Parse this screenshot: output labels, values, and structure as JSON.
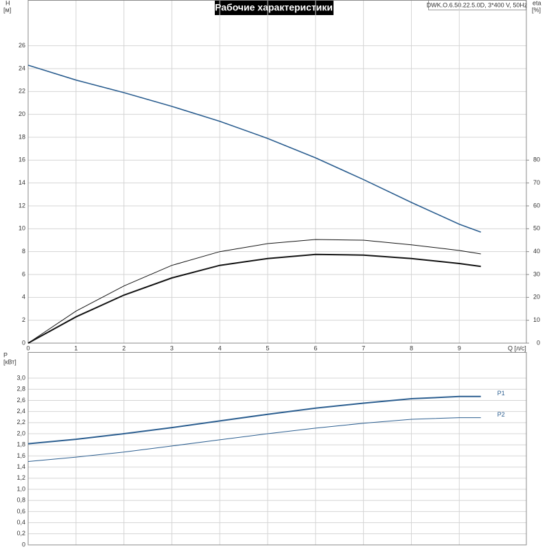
{
  "chart_data": [
    {
      "type": "line",
      "title": "Рабочие характеристики",
      "annotation": "DWK.O.6.50.22.5.0D, 3*400 V, 50Hz",
      "ylabel": "H",
      "yunit": "[м]",
      "y2label": "eta",
      "y2unit": "[%]",
      "xlabel": "Q [л/с]",
      "x": [
        0,
        1,
        2,
        3,
        4,
        5,
        6,
        7,
        8,
        9,
        9.45
      ],
      "xlim": [
        0,
        10.4
      ],
      "xticks": [
        0,
        1,
        2,
        3,
        4,
        5,
        6,
        7,
        8,
        9
      ],
      "ylim": [
        0,
        30
      ],
      "yticks": [
        0,
        2,
        4,
        6,
        8,
        10,
        12,
        14,
        16,
        18,
        20,
        22,
        24,
        26
      ],
      "y2lim": [
        0,
        150
      ],
      "y2ticks": [
        0,
        10,
        20,
        30,
        40,
        50,
        60,
        70,
        80
      ],
      "grid": true,
      "series": [
        {
          "color": "#2a5d8f",
          "width": 1.6,
          "values": [
            24.3,
            23.0,
            21.9,
            20.7,
            19.4,
            17.9,
            16.2,
            14.3,
            12.3,
            10.4,
            9.7
          ]
        },
        {
          "color": "#111111",
          "width": 1,
          "axis": "y2",
          "values": [
            0,
            14,
            25,
            34,
            40,
            43.5,
            45.3,
            45,
            43,
            40.5,
            39
          ]
        },
        {
          "color": "#111111",
          "width": 2,
          "axis": "y2",
          "values": [
            0,
            11.5,
            21,
            28.5,
            34,
            37,
            38.8,
            38.5,
            37,
            34.8,
            33.5
          ]
        }
      ]
    },
    {
      "type": "line",
      "ylabel": "P",
      "yunit": "[кВт]",
      "x": [
        0,
        1,
        2,
        3,
        4,
        5,
        6,
        7,
        8,
        9,
        9.45
      ],
      "xlim": [
        0,
        10.4
      ],
      "ylim": [
        0,
        3.47
      ],
      "yticks": [
        0,
        {
          "value": 0.2,
          "label": "0,2"
        },
        {
          "value": 0.4,
          "label": "0,4"
        },
        {
          "value": 0.6,
          "label": "0,6"
        },
        {
          "value": 0.8,
          "label": "0,8"
        },
        {
          "value": 1.0,
          "label": "1,0"
        },
        {
          "value": 1.2,
          "label": "1,2"
        },
        {
          "value": 1.4,
          "label": "1,4"
        },
        {
          "value": 1.6,
          "label": "1,6"
        },
        {
          "value": 1.8,
          "label": "1,8"
        },
        {
          "value": 2.0,
          "label": "2,0"
        },
        {
          "value": 2.2,
          "label": "2,2"
        },
        {
          "value": 2.4,
          "label": "2,4"
        },
        {
          "value": 2.6,
          "label": "2,6"
        },
        {
          "value": 2.8,
          "label": "2,8"
        },
        {
          "value": 3.0,
          "label": "3,0"
        }
      ],
      "grid": true,
      "series": [
        {
          "name": "P1",
          "color": "#2a5d8f",
          "width": 2,
          "values": [
            1.82,
            1.9,
            2.0,
            2.11,
            2.23,
            2.35,
            2.46,
            2.55,
            2.63,
            2.67,
            2.67
          ]
        },
        {
          "name": "P2",
          "color": "#2a5d8f",
          "width": 1,
          "values": [
            1.5,
            1.58,
            1.67,
            1.78,
            1.89,
            2.0,
            2.1,
            2.19,
            2.26,
            2.29,
            2.29
          ]
        }
      ]
    }
  ]
}
